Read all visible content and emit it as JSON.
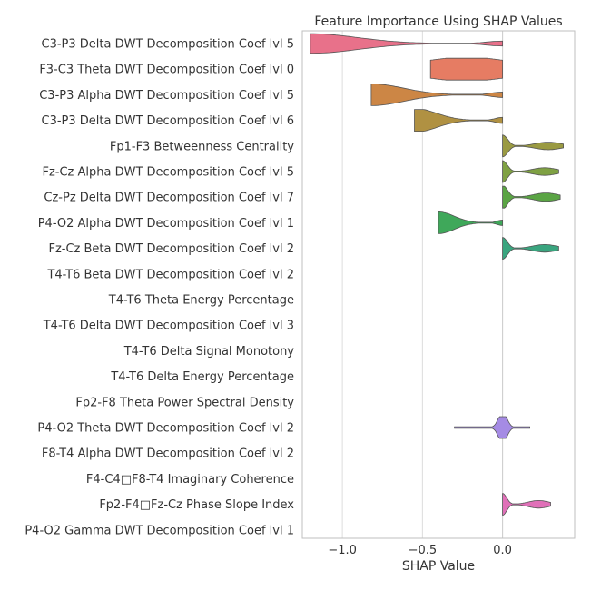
{
  "chart_data": {
    "type": "violin",
    "title": "Feature Importance Using SHAP Values",
    "xlabel": "SHAP Value",
    "ylabel": "",
    "xlim": [
      -1.25,
      0.45
    ],
    "xticks": [
      -1.0,
      -0.5,
      0.0
    ],
    "xtick_labels": [
      "−1.0",
      "−0.5",
      "0.0"
    ],
    "grid": true,
    "features": [
      {
        "name": "C3-P3 Delta DWT Decomposition Coef lvl 5",
        "color": "#e8718a",
        "min": -1.2,
        "max": 0.0,
        "mode": "low",
        "spread": 0.45
      },
      {
        "name": "F3-C3 Theta DWT Decomposition Coef lvl 0",
        "color": "#e67c63",
        "min": -0.45,
        "max": 0.0,
        "mode": "even",
        "spread": 0.55
      },
      {
        "name": "C3-P3 Alpha DWT Decomposition Coef lvl 5",
        "color": "#cc8645",
        "min": -0.82,
        "max": 0.0,
        "mode": "low",
        "spread": 0.5
      },
      {
        "name": "C3-P3 Delta DWT Decomposition Coef lvl 6",
        "color": "#b09142",
        "min": -0.55,
        "max": 0.0,
        "mode": "low",
        "spread": 0.55
      },
      {
        "name": "Fp1-F3 Betweenness Centrality",
        "color": "#9a9a42",
        "min": 0.0,
        "max": 0.38,
        "mode": "high",
        "spread": 0.5
      },
      {
        "name": "Fz-Cz Alpha DWT Decomposition Coef lvl 5",
        "color": "#7fa143",
        "min": 0.0,
        "max": 0.35,
        "mode": "high",
        "spread": 0.5
      },
      {
        "name": "Cz-Pz Delta DWT Decomposition Coef lvl 7",
        "color": "#5aa444",
        "min": 0.0,
        "max": 0.36,
        "mode": "high",
        "spread": 0.55
      },
      {
        "name": "P4-O2 Alpha DWT Decomposition Coef lvl 1",
        "color": "#3fa85a",
        "min": -0.4,
        "max": 0.0,
        "mode": "low",
        "spread": 0.5
      },
      {
        "name": "Fz-Cz Beta DWT Decomposition Coef lvl 2",
        "color": "#3aa57f",
        "min": 0.0,
        "max": 0.35,
        "mode": "high",
        "spread": 0.5
      },
      {
        "name": "T4-T6 Beta DWT Decomposition Coef lvl 2",
        "color": "#3aa29a",
        "min": 0.0,
        "max": 0.0,
        "mode": "none",
        "spread": 0
      },
      {
        "name": "T4-T6 Theta Energy Percentage",
        "color": "#3c9fae",
        "min": 0.0,
        "max": 0.0,
        "mode": "none",
        "spread": 0
      },
      {
        "name": "T4-T6 Delta DWT Decomposition Coef lvl 3",
        "color": "#3e9bc0",
        "min": 0.0,
        "max": 0.0,
        "mode": "none",
        "spread": 0
      },
      {
        "name": "T4-T6 Delta Signal Monotony",
        "color": "#4496d4",
        "min": 0.0,
        "max": 0.0,
        "mode": "none",
        "spread": 0
      },
      {
        "name": "T4-T6 Delta Energy Percentage",
        "color": "#6a8fe0",
        "min": 0.0,
        "max": 0.0,
        "mode": "none",
        "spread": 0
      },
      {
        "name": "Fp2-F8 Theta Power Spectral Density",
        "color": "#8a88e4",
        "min": 0.0,
        "max": 0.0,
        "mode": "none",
        "spread": 0
      },
      {
        "name": "P4-O2 Theta DWT Decomposition Coef lvl 2",
        "color": "#a58be4",
        "min": -0.3,
        "max": 0.17,
        "mode": "center",
        "spread": 0.7
      },
      {
        "name": "F8-T4 Alpha DWT Decomposition Coef lvl 2",
        "color": "#bf82df",
        "min": 0.0,
        "max": 0.0,
        "mode": "none",
        "spread": 0
      },
      {
        "name": "F4-C4□F8-T4 Imaginary Coherence",
        "color": "#d87ad5",
        "min": 0.0,
        "max": 0.0,
        "mode": "none",
        "spread": 0
      },
      {
        "name": "Fp2-F4□Fz-Cz Phase Slope Index",
        "color": "#e070b8",
        "min": 0.0,
        "max": 0.3,
        "mode": "high",
        "spread": 0.5
      },
      {
        "name": "P4-O2 Gamma DWT Decomposition Coef lvl 1",
        "color": "#e8719f",
        "min": 0.0,
        "max": 0.0,
        "mode": "none",
        "spread": 0
      }
    ]
  }
}
